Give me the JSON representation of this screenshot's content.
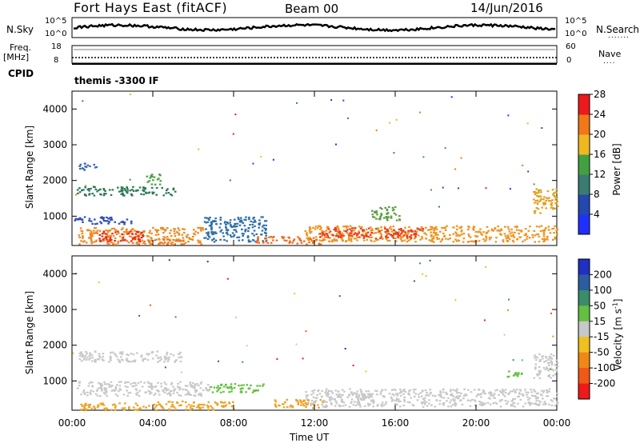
{
  "header": {
    "station": "Fort Hays East (fitACF)",
    "beam": "Beam 00",
    "date": "14/Jun/2016"
  },
  "status_panels": {
    "nsky_label": "N.Sky",
    "nsearch_label": "N.Search",
    "sky_ticks": [
      "10^5",
      "10^0"
    ],
    "search_ticks": [
      "10^5",
      "10^0"
    ],
    "freq_label": "Freq.",
    "freq_unit": "[MHz]",
    "freq_ticks": [
      "18",
      "8"
    ],
    "nave_label": "Nave",
    "nave_ticks": [
      "60",
      "0"
    ],
    "cpid_label": "CPID",
    "cpid_value": "themis -3300 IF"
  },
  "chart_data": [
    {
      "type": "heatmap",
      "title": "",
      "xlabel": "Time UT",
      "ylabel": "Slant Range [km]",
      "x_range_hours": [
        0,
        24
      ],
      "ylim": [
        180,
        4500
      ],
      "y_ticks": [
        "1000",
        "2000",
        "3000",
        "4000"
      ],
      "x_ticks": [
        "00:00",
        "04:00",
        "08:00",
        "12:00",
        "16:00",
        "20:00",
        "00:00"
      ],
      "colorbar": {
        "label": "Power [dB]",
        "ticks": [
          "4",
          "8",
          "12",
          "16",
          "20",
          "24",
          "28"
        ],
        "colors": [
          "#1f2fff",
          "#2448b0",
          "#3a7c72",
          "#43a040",
          "#f0b820",
          "#f07818",
          "#ec1a1a"
        ]
      },
      "regions": [
        {
          "hours": [
            0.2,
            5.2
          ],
          "range_km": [
            1600,
            1850
          ],
          "level": "low",
          "color": "#2e7a55"
        },
        {
          "hours": [
            0.3,
            1.2
          ],
          "range_km": [
            2300,
            2500
          ],
          "level": "low",
          "color": "#3a6ab0"
        },
        {
          "hours": [
            3.6,
            4.4
          ],
          "range_km": [
            1900,
            2200
          ],
          "level": "mid",
          "color": "#4aa040"
        },
        {
          "hours": [
            0.1,
            3.0
          ],
          "range_km": [
            800,
            1000
          ],
          "level": "low",
          "color": "#3050b0"
        },
        {
          "hours": [
            0.3,
            6.5
          ],
          "range_km": [
            230,
            700
          ],
          "level": "high",
          "color": "#ef8a22"
        },
        {
          "hours": [
            1.3,
            3.5
          ],
          "range_km": [
            300,
            600
          ],
          "level": "peak",
          "color": "#ea2a1a"
        },
        {
          "hours": [
            3.5,
            5.5
          ],
          "range_km": [
            200,
            380
          ],
          "level": "high",
          "color": "#e87a20"
        },
        {
          "hours": [
            6.5,
            9.6
          ],
          "range_km": [
            300,
            1000
          ],
          "level": "low",
          "color": "#2f70a8"
        },
        {
          "hours": [
            9.0,
            12.5
          ],
          "range_km": [
            230,
            450
          ],
          "level": "high",
          "color": "#ee6a1a"
        },
        {
          "hours": [
            11.5,
            24.0
          ],
          "range_km": [
            300,
            750
          ],
          "level": "high",
          "color": "#ef9420"
        },
        {
          "hours": [
            12.2,
            17.5
          ],
          "range_km": [
            400,
            700
          ],
          "level": "peak",
          "color": "#e8401c"
        },
        {
          "hours": [
            14.8,
            16.2
          ],
          "range_km": [
            900,
            1300
          ],
          "level": "mid",
          "color": "#5aa040"
        },
        {
          "hours": [
            22.8,
            24.0
          ],
          "range_km": [
            1100,
            1800
          ],
          "level": "mid",
          "color": "#e0a020"
        }
      ]
    },
    {
      "type": "heatmap",
      "title": "",
      "xlabel": "Time UT",
      "ylabel": "Slant Range [km]",
      "x_range_hours": [
        0,
        24
      ],
      "ylim": [
        180,
        4500
      ],
      "y_ticks": [
        "1000",
        "2000",
        "3000",
        "4000"
      ],
      "x_ticks": [
        "00:00",
        "04:00",
        "08:00",
        "12:00",
        "16:00",
        "20:00",
        "00:00"
      ],
      "colorbar": {
        "label": "Velocity [m s^-1]",
        "ticks": [
          "200",
          "100",
          "50",
          "15",
          "-15",
          "-50",
          "-100",
          "-200"
        ],
        "colors": [
          "#2030c0",
          "#2a5ea0",
          "#3a8c6a",
          "#64c040",
          "#c8c8c8",
          "#f0c020",
          "#f08818",
          "#f05818",
          "#ee1a1a"
        ]
      },
      "regions": [
        {
          "hours": [
            0.2,
            5.4
          ],
          "range_km": [
            1550,
            1850
          ],
          "level": "neutral",
          "color": "#c8c8c8"
        },
        {
          "hours": [
            0.2,
            6.8
          ],
          "range_km": [
            600,
            1000
          ],
          "level": "neutral",
          "color": "#c8c8c8"
        },
        {
          "hours": [
            0.4,
            4.0
          ],
          "range_km": [
            200,
            400
          ],
          "level": "away",
          "color": "#f0a020"
        },
        {
          "hours": [
            4.0,
            8.0
          ],
          "range_km": [
            200,
            450
          ],
          "level": "away",
          "color": "#f0a020"
        },
        {
          "hours": [
            6.8,
            9.5
          ],
          "range_km": [
            700,
            950
          ],
          "level": "toward",
          "color": "#64c040"
        },
        {
          "hours": [
            10.0,
            12.5
          ],
          "range_km": [
            250,
            500
          ],
          "level": "away",
          "color": "#f0a020"
        },
        {
          "hours": [
            11.5,
            24.0
          ],
          "range_km": [
            300,
            800
          ],
          "level": "neutral",
          "color": "#c8c8c8"
        },
        {
          "hours": [
            21.5,
            22.3
          ],
          "range_km": [
            1100,
            1300
          ],
          "level": "toward",
          "color": "#64c040"
        },
        {
          "hours": [
            22.8,
            24.0
          ],
          "range_km": [
            1100,
            1800
          ],
          "level": "neutral",
          "color": "#c8c8c8"
        }
      ]
    }
  ]
}
